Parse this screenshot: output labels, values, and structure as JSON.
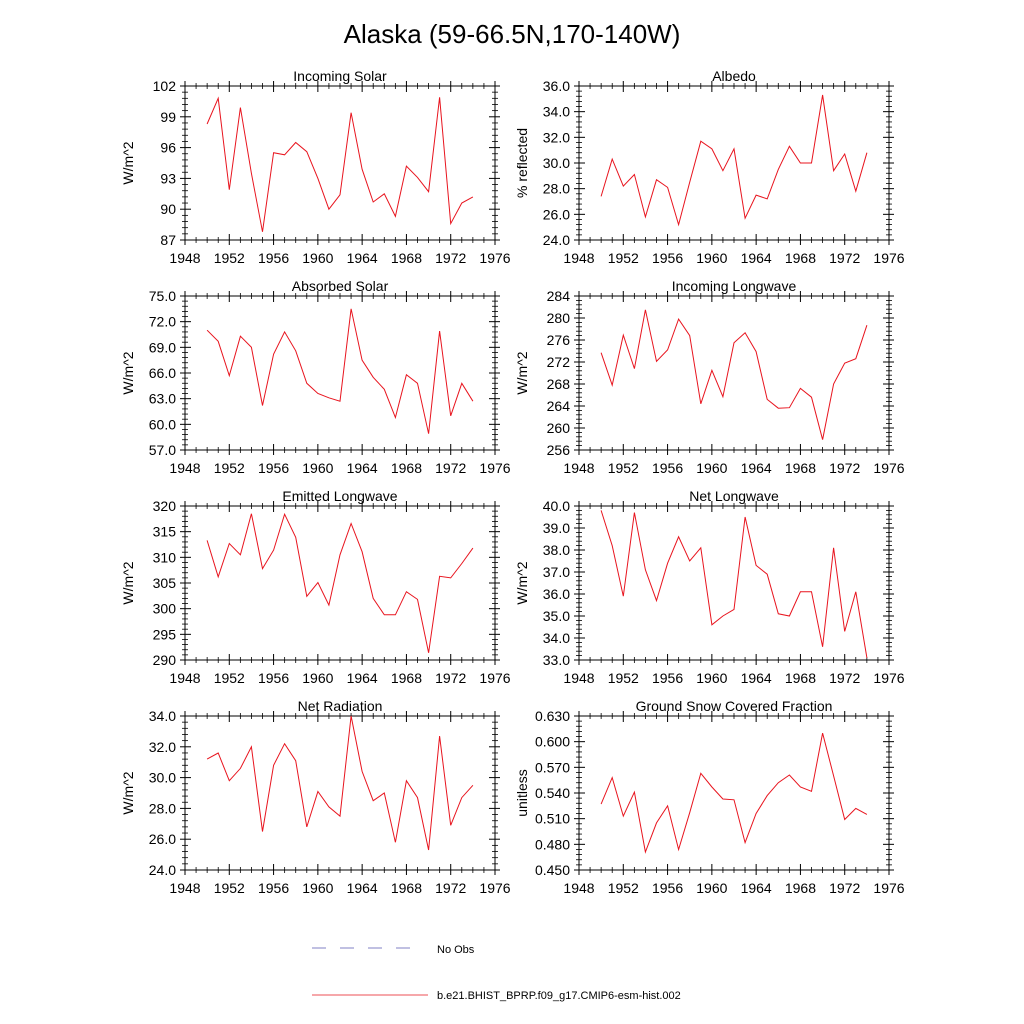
{
  "title": "Alaska (59-66.5N,170-140W)",
  "legend": {
    "obs_label": "No Obs",
    "model_label": "b.e21.BHIST_BPRP.f09_g17.CMIP6-esm-hist.002",
    "obs_color": "#5a5ab4",
    "model_color": "#e8141e"
  },
  "chart_data": [
    {
      "type": "line",
      "title": "Incoming Solar",
      "ylabel": "W/m^2",
      "xlim": [
        1948,
        1976
      ],
      "xticks": [
        "1948",
        "1952",
        "1956",
        "1960",
        "1964",
        "1968",
        "1972",
        "1976"
      ],
      "ylim": [
        87,
        102
      ],
      "yticks": [
        "87",
        "90",
        "93",
        "96",
        "99",
        "102"
      ],
      "x": [
        1950,
        1951,
        1952,
        1953,
        1954,
        1955,
        1956,
        1957,
        1958,
        1959,
        1960,
        1961,
        1962,
        1963,
        1964,
        1965,
        1966,
        1967,
        1968,
        1969,
        1970,
        1971,
        1972,
        1973,
        1974
      ],
      "values": [
        98.3,
        100.8,
        91.9,
        99.9,
        93.5,
        87.8,
        95.5,
        95.3,
        96.5,
        95.6,
        93.0,
        90.0,
        91.4,
        99.4,
        93.9,
        90.7,
        91.5,
        89.3,
        94.2,
        93.1,
        91.7,
        100.9,
        88.6,
        90.6,
        91.2
      ]
    },
    {
      "type": "line",
      "title": "Albedo",
      "ylabel": "% reflected",
      "xlim": [
        1948,
        1976
      ],
      "xticks": [
        "1948",
        "1952",
        "1956",
        "1960",
        "1964",
        "1968",
        "1972",
        "1976"
      ],
      "ylim": [
        24,
        36
      ],
      "yticks": [
        "24.0",
        "26.0",
        "28.0",
        "30.0",
        "32.0",
        "34.0",
        "36.0"
      ],
      "x": [
        1950,
        1951,
        1952,
        1953,
        1954,
        1955,
        1956,
        1957,
        1958,
        1959,
        1960,
        1961,
        1962,
        1963,
        1964,
        1965,
        1966,
        1967,
        1968,
        1969,
        1970,
        1971,
        1972,
        1973,
        1974
      ],
      "values": [
        27.4,
        30.3,
        28.2,
        29.1,
        25.8,
        28.7,
        28.1,
        25.2,
        28.5,
        31.7,
        31.1,
        29.4,
        31.1,
        25.7,
        27.5,
        27.2,
        29.5,
        31.3,
        30.0,
        30.0,
        35.3,
        29.4,
        30.7,
        27.8,
        30.8
      ]
    },
    {
      "type": "line",
      "title": "Absorbed Solar",
      "ylabel": "W/m^2",
      "xlim": [
        1948,
        1976
      ],
      "xticks": [
        "1948",
        "1952",
        "1956",
        "1960",
        "1964",
        "1968",
        "1972",
        "1976"
      ],
      "ylim": [
        57,
        75
      ],
      "yticks": [
        "57.0",
        "60.0",
        "63.0",
        "66.0",
        "69.0",
        "72.0",
        "75.0"
      ],
      "x": [
        1950,
        1951,
        1952,
        1953,
        1954,
        1955,
        1956,
        1957,
        1958,
        1959,
        1960,
        1961,
        1962,
        1963,
        1964,
        1965,
        1966,
        1967,
        1968,
        1969,
        1970,
        1971,
        1972,
        1973,
        1974
      ],
      "values": [
        71.0,
        69.7,
        65.7,
        70.3,
        69.0,
        62.2,
        68.2,
        70.8,
        68.6,
        64.8,
        63.6,
        63.1,
        62.7,
        73.5,
        67.5,
        65.5,
        64.1,
        60.8,
        65.8,
        64.8,
        58.9,
        70.9,
        61.0,
        64.8,
        62.7
      ]
    },
    {
      "type": "line",
      "title": "Incoming Longwave",
      "ylabel": "W/m^2",
      "xlim": [
        1948,
        1976
      ],
      "xticks": [
        "1948",
        "1952",
        "1956",
        "1960",
        "1964",
        "1968",
        "1972",
        "1976"
      ],
      "ylim": [
        256,
        284
      ],
      "yticks": [
        "256",
        "260",
        "264",
        "268",
        "272",
        "276",
        "280",
        "284"
      ],
      "x": [
        1950,
        1951,
        1952,
        1953,
        1954,
        1955,
        1956,
        1957,
        1958,
        1959,
        1960,
        1961,
        1962,
        1963,
        1964,
        1965,
        1966,
        1967,
        1968,
        1969,
        1970,
        1971,
        1972,
        1973,
        1974
      ],
      "values": [
        273.7,
        267.8,
        276.9,
        270.8,
        281.5,
        272.1,
        274.2,
        279.8,
        276.8,
        264.4,
        270.5,
        265.7,
        275.5,
        277.3,
        273.9,
        265.2,
        263.6,
        263.7,
        267.2,
        265.6,
        257.9,
        268.0,
        271.8,
        272.6,
        278.7
      ]
    },
    {
      "type": "line",
      "title": "Emitted Longwave",
      "ylabel": "W/m^2",
      "xlim": [
        1948,
        1976
      ],
      "xticks": [
        "1948",
        "1952",
        "1956",
        "1960",
        "1964",
        "1968",
        "1972",
        "1976"
      ],
      "ylim": [
        290,
        320
      ],
      "yticks": [
        "290",
        "295",
        "300",
        "305",
        "310",
        "315",
        "320"
      ],
      "x": [
        1950,
        1951,
        1952,
        1953,
        1954,
        1955,
        1956,
        1957,
        1958,
        1959,
        1960,
        1961,
        1962,
        1963,
        1964,
        1965,
        1966,
        1967,
        1968,
        1969,
        1970,
        1971,
        1972,
        1973,
        1974
      ],
      "values": [
        313.3,
        306.2,
        312.7,
        310.5,
        318.5,
        307.8,
        311.4,
        318.4,
        313.9,
        302.4,
        305.1,
        300.7,
        310.5,
        316.6,
        311.1,
        302.0,
        298.8,
        298.8,
        303.3,
        301.8,
        291.4,
        306.3,
        306.0,
        308.8,
        311.8
      ]
    },
    {
      "type": "line",
      "title": "Net Longwave",
      "ylabel": "W/m^2",
      "xlim": [
        1948,
        1976
      ],
      "xticks": [
        "1948",
        "1952",
        "1956",
        "1960",
        "1964",
        "1968",
        "1972",
        "1976"
      ],
      "ylim": [
        33,
        40
      ],
      "yticks": [
        "33.0",
        "34.0",
        "35.0",
        "36.0",
        "37.0",
        "38.0",
        "39.0",
        "40.0"
      ],
      "x": [
        1950,
        1951,
        1952,
        1953,
        1954,
        1955,
        1956,
        1957,
        1958,
        1959,
        1960,
        1961,
        1962,
        1963,
        1964,
        1965,
        1966,
        1967,
        1968,
        1969,
        1970,
        1971,
        1972,
        1973,
        1974
      ],
      "values": [
        39.8,
        38.2,
        35.9,
        39.7,
        37.1,
        35.7,
        37.4,
        38.6,
        37.5,
        38.1,
        34.6,
        35.0,
        35.3,
        39.5,
        37.3,
        36.9,
        35.1,
        35.0,
        36.1,
        36.1,
        33.6,
        38.1,
        34.3,
        36.1,
        33.1
      ]
    },
    {
      "type": "line",
      "title": "Net Radiation",
      "ylabel": "W/m^2",
      "xlim": [
        1948,
        1976
      ],
      "xticks": [
        "1948",
        "1952",
        "1956",
        "1960",
        "1964",
        "1968",
        "1972",
        "1976"
      ],
      "ylim": [
        24,
        34
      ],
      "yticks": [
        "24.0",
        "26.0",
        "28.0",
        "30.0",
        "32.0",
        "34.0"
      ],
      "x": [
        1950,
        1951,
        1952,
        1953,
        1954,
        1955,
        1956,
        1957,
        1958,
        1959,
        1960,
        1961,
        1962,
        1963,
        1964,
        1965,
        1966,
        1967,
        1968,
        1969,
        1970,
        1971,
        1972,
        1973,
        1974
      ],
      "values": [
        31.2,
        31.6,
        29.8,
        30.6,
        32.0,
        26.5,
        30.8,
        32.2,
        31.1,
        26.8,
        29.1,
        28.1,
        27.5,
        34.0,
        30.4,
        28.5,
        29.0,
        25.8,
        29.8,
        28.7,
        25.3,
        32.7,
        26.9,
        28.7,
        29.5
      ]
    },
    {
      "type": "line",
      "title": "Ground Snow Covered Fraction",
      "ylabel": "unitless",
      "xlim": [
        1948,
        1976
      ],
      "xticks": [
        "1948",
        "1952",
        "1956",
        "1960",
        "1964",
        "1968",
        "1972",
        "1976"
      ],
      "ylim": [
        0.45,
        0.63
      ],
      "yticks": [
        "0.450",
        "0.480",
        "0.510",
        "0.540",
        "0.570",
        "0.600",
        "0.630"
      ],
      "x": [
        1950,
        1951,
        1952,
        1953,
        1954,
        1955,
        1956,
        1957,
        1958,
        1959,
        1960,
        1961,
        1962,
        1963,
        1964,
        1965,
        1966,
        1967,
        1968,
        1969,
        1970,
        1971,
        1972,
        1973,
        1974
      ],
      "values": [
        0.527,
        0.558,
        0.513,
        0.541,
        0.471,
        0.505,
        0.525,
        0.474,
        0.517,
        0.563,
        0.547,
        0.533,
        0.532,
        0.482,
        0.516,
        0.537,
        0.552,
        0.561,
        0.547,
        0.542,
        0.61,
        0.56,
        0.509,
        0.522,
        0.515
      ]
    }
  ]
}
